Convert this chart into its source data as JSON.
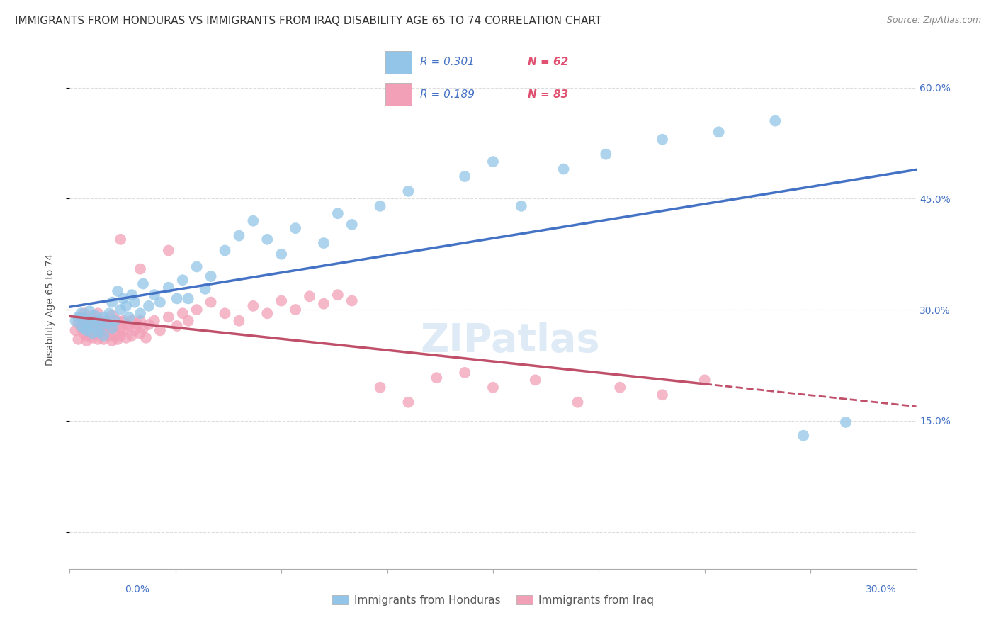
{
  "title": "IMMIGRANTS FROM HONDURAS VS IMMIGRANTS FROM IRAQ DISABILITY AGE 65 TO 74 CORRELATION CHART",
  "source": "Source: ZipAtlas.com",
  "ylabel": "Disability Age 65 to 74",
  "ytick_labels": [
    "",
    "15.0%",
    "30.0%",
    "45.0%",
    "60.0%"
  ],
  "ytick_values": [
    0.0,
    0.15,
    0.3,
    0.45,
    0.6
  ],
  "xlim": [
    0.0,
    0.3
  ],
  "ylim": [
    -0.05,
    0.65
  ],
  "legend_r1": "R = 0.301",
  "legend_n1": "N = 62",
  "legend_r2": "R = 0.189",
  "legend_n2": "N = 83",
  "color_honduras": "#92C5E8",
  "color_iraq": "#F2A0B8",
  "color_line_honduras": "#4472C4",
  "color_line_iraq": "#C0506A",
  "watermark": "ZIPatlas",
  "background_color": "#FFFFFF",
  "grid_color": "#DDDDDD",
  "title_fontsize": 11,
  "axis_label_fontsize": 10,
  "tick_fontsize": 10,
  "legend_fontsize": 12,
  "watermark_fontsize": 40,
  "honduras_x": [
    0.002,
    0.003,
    0.004,
    0.004,
    0.005,
    0.005,
    0.006,
    0.007,
    0.007,
    0.008,
    0.008,
    0.009,
    0.01,
    0.01,
    0.011,
    0.012,
    0.012,
    0.013,
    0.014,
    0.015,
    0.015,
    0.016,
    0.017,
    0.018,
    0.019,
    0.02,
    0.021,
    0.022,
    0.023,
    0.025,
    0.026,
    0.028,
    0.03,
    0.032,
    0.035,
    0.038,
    0.04,
    0.042,
    0.045,
    0.048,
    0.05,
    0.055,
    0.06,
    0.065,
    0.07,
    0.075,
    0.08,
    0.09,
    0.095,
    0.1,
    0.11,
    0.12,
    0.14,
    0.15,
    0.16,
    0.175,
    0.19,
    0.21,
    0.23,
    0.25,
    0.26,
    0.275
  ],
  "honduras_y": [
    0.285,
    0.29,
    0.278,
    0.295,
    0.275,
    0.288,
    0.272,
    0.282,
    0.298,
    0.268,
    0.28,
    0.292,
    0.27,
    0.285,
    0.278,
    0.29,
    0.265,
    0.282,
    0.295,
    0.275,
    0.31,
    0.285,
    0.325,
    0.3,
    0.315,
    0.305,
    0.29,
    0.32,
    0.31,
    0.295,
    0.335,
    0.305,
    0.32,
    0.31,
    0.33,
    0.315,
    0.34,
    0.315,
    0.358,
    0.328,
    0.345,
    0.38,
    0.4,
    0.42,
    0.395,
    0.375,
    0.41,
    0.39,
    0.43,
    0.415,
    0.44,
    0.46,
    0.48,
    0.5,
    0.44,
    0.49,
    0.51,
    0.53,
    0.54,
    0.555,
    0.13,
    0.148
  ],
  "iraq_x": [
    0.002,
    0.003,
    0.003,
    0.004,
    0.004,
    0.005,
    0.005,
    0.005,
    0.006,
    0.006,
    0.006,
    0.007,
    0.007,
    0.008,
    0.008,
    0.008,
    0.009,
    0.009,
    0.01,
    0.01,
    0.01,
    0.011,
    0.011,
    0.012,
    0.012,
    0.013,
    0.013,
    0.014,
    0.014,
    0.015,
    0.015,
    0.015,
    0.016,
    0.016,
    0.017,
    0.017,
    0.018,
    0.018,
    0.019,
    0.019,
    0.02,
    0.02,
    0.021,
    0.022,
    0.022,
    0.023,
    0.024,
    0.025,
    0.025,
    0.026,
    0.027,
    0.028,
    0.03,
    0.032,
    0.035,
    0.038,
    0.04,
    0.042,
    0.045,
    0.05,
    0.055,
    0.06,
    0.065,
    0.07,
    0.075,
    0.08,
    0.085,
    0.09,
    0.095,
    0.1,
    0.11,
    0.12,
    0.13,
    0.14,
    0.15,
    0.165,
    0.18,
    0.195,
    0.21,
    0.225,
    0.018,
    0.025,
    0.035
  ],
  "iraq_y": [
    0.272,
    0.282,
    0.26,
    0.275,
    0.29,
    0.268,
    0.28,
    0.295,
    0.265,
    0.278,
    0.258,
    0.285,
    0.272,
    0.262,
    0.278,
    0.292,
    0.268,
    0.285,
    0.26,
    0.278,
    0.295,
    0.27,
    0.285,
    0.275,
    0.26,
    0.285,
    0.272,
    0.28,
    0.265,
    0.275,
    0.258,
    0.292,
    0.265,
    0.278,
    0.285,
    0.26,
    0.275,
    0.265,
    0.285,
    0.272,
    0.28,
    0.262,
    0.278,
    0.285,
    0.265,
    0.272,
    0.28,
    0.268,
    0.285,
    0.275,
    0.262,
    0.28,
    0.285,
    0.272,
    0.29,
    0.278,
    0.295,
    0.285,
    0.3,
    0.31,
    0.295,
    0.285,
    0.305,
    0.295,
    0.312,
    0.3,
    0.318,
    0.308,
    0.32,
    0.312,
    0.195,
    0.175,
    0.208,
    0.215,
    0.195,
    0.205,
    0.175,
    0.195,
    0.185,
    0.205,
    0.395,
    0.355,
    0.38
  ]
}
